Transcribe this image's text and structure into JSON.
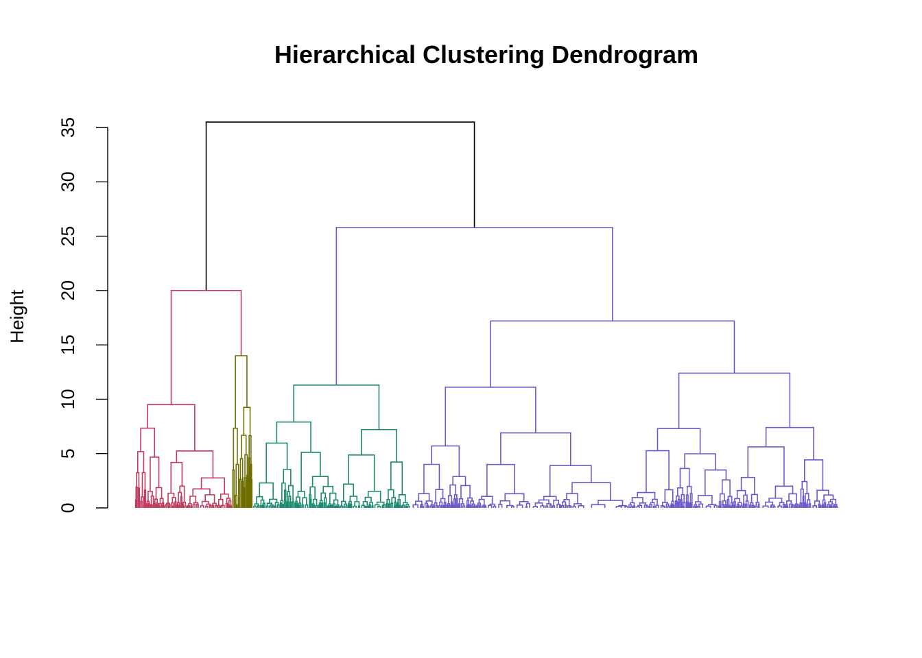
{
  "chart_data": {
    "type": "dendrogram",
    "title": "Hierarchical Clustering Dendrogram",
    "xlabel": "",
    "ylabel": "Height",
    "ylim": [
      0,
      35
    ],
    "yticks": [
      "0",
      "5",
      "10",
      "15",
      "20",
      "25",
      "30",
      "35"
    ],
    "root_height": 35.5,
    "top_split": {
      "left_height": 20.0,
      "right_height": 25.8
    },
    "clusters": [
      {
        "color": "#C03B5E",
        "height": 9.5,
        "leaf_range": [
          0,
          0.138
        ],
        "sub_merges": [
          6.3,
          8.6,
          4.9,
          5.0,
          4.4,
          3.6,
          3.1
        ]
      },
      {
        "color": "#6E6E00",
        "height": 14.0,
        "leaf_range": [
          0.138,
          0.167
        ],
        "sub_merges": [
          10.8,
          8.6,
          4.7,
          4.6,
          5.2
        ]
      },
      {
        "color": "#1B8A6E",
        "height": 11.3,
        "leaf_range": [
          0.167,
          0.392
        ],
        "sub_merges": [
          8.0,
          9.3,
          7.3,
          4.3,
          5.0,
          4.2,
          4.6
        ]
      },
      {
        "color": "#6A5ACD",
        "height": 25.8,
        "leaf_range": [
          0.392,
          1.0
        ],
        "sub_merges": [
          17.2,
          11.1,
          12.4,
          5.7,
          6.9,
          6.5,
          7.3,
          7.4,
          5.3,
          3.5,
          3.6
        ]
      }
    ]
  }
}
